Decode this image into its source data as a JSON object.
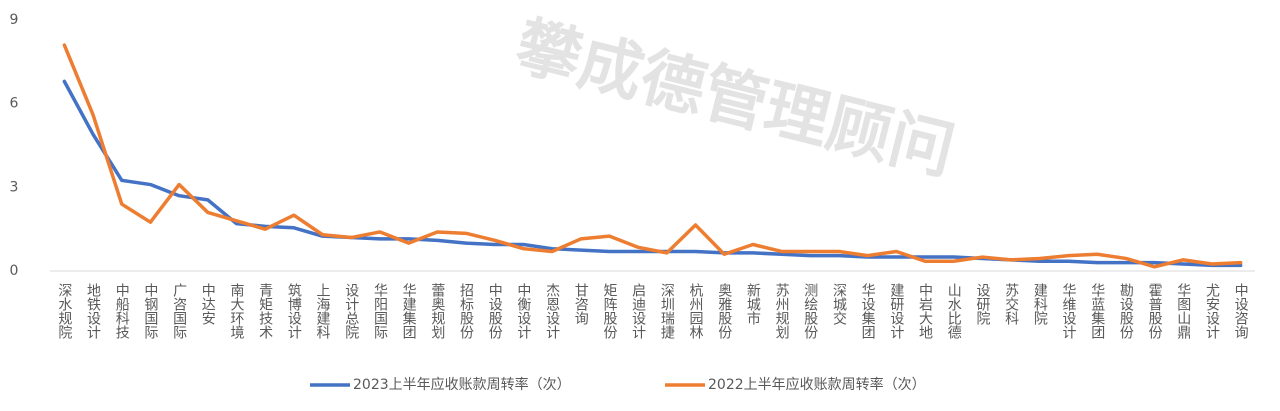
{
  "chart_data": {
    "type": "line",
    "watermark": "攀成德管理顾问",
    "categories": [
      "深水规院",
      "地铁设计",
      "中船科技",
      "中钢国际",
      "广咨国际",
      "中达安",
      "南大环境",
      "青矩技术",
      "筑博设计",
      "上海建科",
      "设计总院",
      "华阳国际",
      "华建集团",
      "蕾奥规划",
      "招标股份",
      "中设股份",
      "中衡设计",
      "杰恩设计",
      "甘咨询",
      "矩阵股份",
      "启迪设计",
      "深圳瑞捷",
      "杭州园林",
      "奥雅股份",
      "新城市",
      "苏州规划",
      "测绘股份",
      "深城交",
      "华设集团",
      "建研设计",
      "中岩大地",
      "山水比德",
      "设研院",
      "苏交科",
      "建科院",
      "华维设计",
      "华蓝集团",
      "勘设股份",
      "霍普股份",
      "华图山鼎",
      "尤安设计",
      "中设咨询"
    ],
    "series": [
      {
        "name": "2023上半年应收账款周转率（次）",
        "color": "#4472c4",
        "values": [
          6.8,
          4.9,
          3.25,
          3.1,
          2.7,
          2.55,
          1.7,
          1.6,
          1.55,
          1.25,
          1.2,
          1.15,
          1.15,
          1.1,
          1.0,
          0.95,
          0.95,
          0.8,
          0.75,
          0.7,
          0.7,
          0.7,
          0.7,
          0.65,
          0.65,
          0.6,
          0.55,
          0.55,
          0.5,
          0.5,
          0.5,
          0.5,
          0.45,
          0.4,
          0.35,
          0.35,
          0.3,
          0.3,
          0.3,
          0.25,
          0.2,
          0.2
        ]
      },
      {
        "name": "2022上半年应收账款周转率（次）",
        "color": "#ed7d31",
        "values": [
          8.1,
          5.6,
          2.4,
          1.75,
          3.1,
          2.1,
          1.8,
          1.5,
          2.0,
          1.3,
          1.2,
          1.4,
          1.0,
          1.4,
          1.35,
          1.1,
          0.8,
          0.7,
          1.15,
          1.25,
          0.85,
          0.65,
          1.65,
          0.6,
          0.95,
          0.7,
          0.7,
          0.7,
          0.55,
          0.7,
          0.35,
          0.35,
          0.5,
          0.4,
          0.45,
          0.55,
          0.6,
          0.45,
          0.15,
          0.4,
          0.25,
          0.3
        ]
      }
    ],
    "ylim": [
      0,
      9
    ],
    "yticks": [
      0,
      3,
      6,
      9
    ],
    "legend": "bottom"
  }
}
